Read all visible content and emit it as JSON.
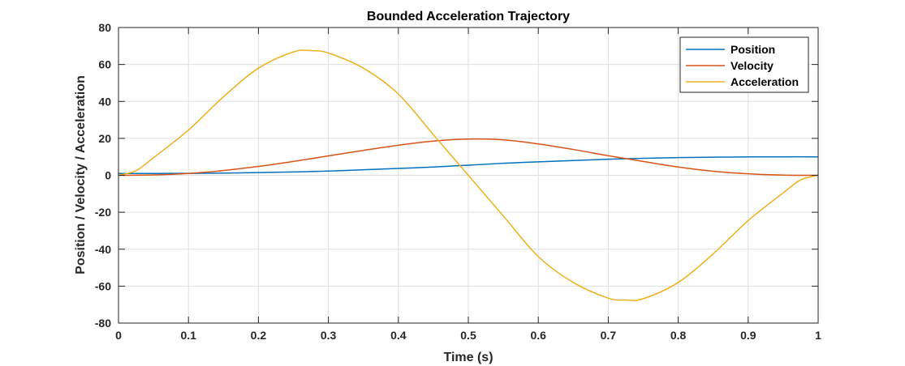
{
  "chart_data": {
    "type": "line",
    "title": "Bounded Acceleration Trajectory",
    "xlabel": "Time (s)",
    "ylabel": "Position / Velocity / Acceleration",
    "xlim": [
      0,
      1
    ],
    "ylim": [
      -80,
      80
    ],
    "xticks": [
      0,
      0.1,
      0.2,
      0.3,
      0.4,
      0.5,
      0.6,
      0.7,
      0.8,
      0.9,
      1
    ],
    "xtick_labels": [
      "0",
      "0.1",
      "0.2",
      "0.3",
      "0.4",
      "0.5",
      "0.6",
      "0.7",
      "0.8",
      "0.9",
      "1"
    ],
    "yticks": [
      -80,
      -60,
      -40,
      -20,
      0,
      20,
      40,
      60,
      80
    ],
    "ytick_labels": [
      "-80",
      "-60",
      "-40",
      "-20",
      "0",
      "20",
      "40",
      "60",
      "80"
    ],
    "grid": true,
    "legend_position": "top-right",
    "series": [
      {
        "name": "Position",
        "color": "#0072BD",
        "x": [
          0,
          0.05,
          0.1,
          0.15,
          0.2,
          0.25,
          0.3,
          0.35,
          0.4,
          0.45,
          0.5,
          0.55,
          0.6,
          0.65,
          0.7,
          0.75,
          0.8,
          0.85,
          0.9,
          0.95,
          1
        ],
        "y": [
          1.0,
          1.0,
          1.05,
          1.2,
          1.5,
          1.8,
          2.3,
          3.0,
          3.7,
          4.5,
          5.5,
          6.5,
          7.3,
          8.0,
          8.7,
          9.2,
          9.6,
          9.8,
          9.95,
          10.0,
          10.0
        ]
      },
      {
        "name": "Velocity",
        "color": "#D95319",
        "x": [
          0,
          0.05,
          0.1,
          0.15,
          0.2,
          0.25,
          0.3,
          0.35,
          0.4,
          0.45,
          0.5,
          0.55,
          0.6,
          0.65,
          0.7,
          0.75,
          0.8,
          0.85,
          0.9,
          0.95,
          1
        ],
        "y": [
          0,
          0.2,
          1.0,
          2.6,
          4.8,
          7.5,
          10.5,
          13.5,
          16.3,
          18.5,
          19.6,
          19.2,
          17.0,
          14.0,
          10.6,
          7.5,
          4.5,
          2.2,
          0.8,
          0.1,
          0
        ]
      },
      {
        "name": "Acceleration",
        "color": "#EDB120",
        "x": [
          0,
          0.025,
          0.05,
          0.1,
          0.15,
          0.2,
          0.25,
          0.275,
          0.3,
          0.35,
          0.4,
          0.45,
          0.5,
          0.55,
          0.6,
          0.65,
          0.7,
          0.725,
          0.75,
          0.8,
          0.85,
          0.9,
          0.95,
          0.975,
          1
        ],
        "y": [
          0,
          2.5,
          9.5,
          24.5,
          42.5,
          58.0,
          66.8,
          67.5,
          66.2,
          58.0,
          44.0,
          22.0,
          0,
          -22.0,
          -44.0,
          -58.0,
          -66.5,
          -67.5,
          -66.8,
          -58.0,
          -42.5,
          -24.5,
          -9.5,
          -2.5,
          0
        ]
      }
    ]
  }
}
